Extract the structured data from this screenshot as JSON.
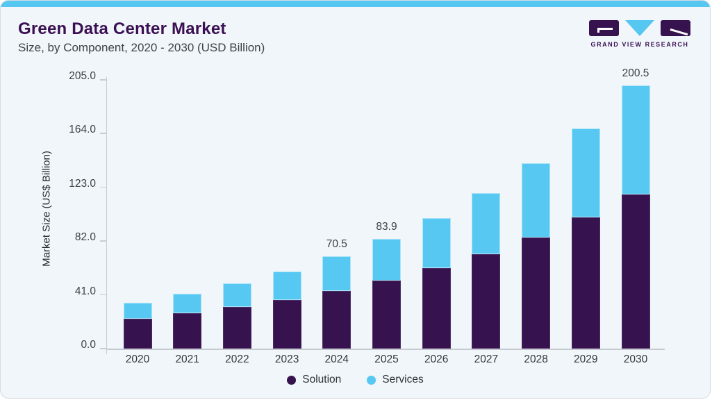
{
  "header": {
    "title": "Green Data Center Market",
    "subtitle": "Size, by Component, 2020 - 2030 (USD Billion)",
    "logo_text": "GRAND VIEW RESEARCH"
  },
  "colors": {
    "accent_bar": "#56C7F0",
    "card_background": "#F0F6FA",
    "title_purple": "#3B1053",
    "axis_line": "#C9CDD3",
    "label_text": "#3A3E44"
  },
  "chart_data": {
    "type": "bar",
    "stacked": true,
    "title": "Green Data Center Market Size, by Component, 2020 - 2030 (USD Billion)",
    "categories": [
      "2020",
      "2021",
      "2022",
      "2023",
      "2024",
      "2025",
      "2026",
      "2027",
      "2028",
      "2029",
      "2030"
    ],
    "series": [
      {
        "name": "Solution",
        "color": "#36124F",
        "values": [
          23.0,
          27.0,
          32.0,
          37.3,
          43.9,
          52.0,
          61.4,
          72.1,
          84.9,
          100.1,
          117.7
        ]
      },
      {
        "name": "Services",
        "color": "#57C8F2",
        "values": [
          12.0,
          14.7,
          17.6,
          21.7,
          26.6,
          31.9,
          38.2,
          46.5,
          56.5,
          67.9,
          82.8
        ]
      }
    ],
    "totals": [
      35.0,
      41.7,
      49.6,
      59.0,
      70.5,
      83.9,
      99.6,
      118.6,
      141.4,
      168.0,
      200.5
    ],
    "value_labels": [
      "",
      "",
      "",
      "",
      "70.5",
      "83.9",
      "",
      "",
      "",
      "",
      "200.5"
    ],
    "xlabel": "",
    "ylabel": "Market Size (US$ Billion)",
    "yticks": [
      0.0,
      41.0,
      82.0,
      123.0,
      164.0,
      205.0
    ],
    "ytick_labels": [
      "0.0",
      "41.0",
      "82.0",
      "123.0",
      "164.0",
      "205.0"
    ],
    "ylim": [
      0,
      207
    ],
    "grid": false,
    "legend_position": "bottom"
  }
}
